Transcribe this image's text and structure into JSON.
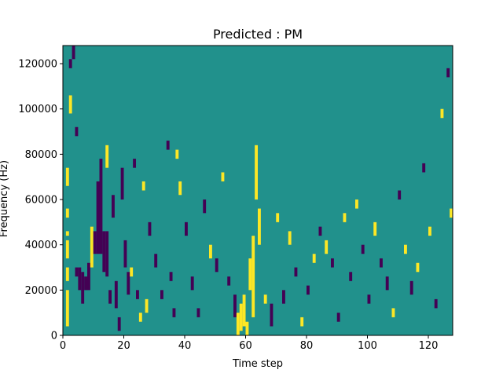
{
  "chart_data": {
    "type": "heatmap",
    "title": "Predicted : PM",
    "xlabel": "Time step",
    "ylabel": "Frequency (Hz)",
    "xlim": [
      0,
      128
    ],
    "ylim": [
      0,
      128000
    ],
    "x_ticks": [
      0,
      20,
      40,
      60,
      80,
      100,
      120
    ],
    "x_tick_labels": [
      "0",
      "20",
      "40",
      "60",
      "80",
      "100",
      "120"
    ],
    "y_ticks": [
      0,
      20000,
      40000,
      60000,
      80000,
      100000,
      120000
    ],
    "y_tick_labels": [
      "0",
      "20000",
      "40000",
      "60000",
      "80000",
      "100000",
      "120000"
    ],
    "value_levels": {
      "low": -1,
      "mid": 0,
      "high": 1
    },
    "colors": {
      "low": "#440154",
      "mid": "#21918c",
      "high": "#fde725"
    },
    "background_value": 0,
    "cells": [
      {
        "t": 1,
        "f": [
          4000,
          20000
        ],
        "v": 1
      },
      {
        "t": 1,
        "f": [
          24000,
          30000
        ],
        "v": 1
      },
      {
        "t": 1,
        "f": [
          34000,
          42000
        ],
        "v": 1
      },
      {
        "t": 1,
        "f": [
          44000,
          46000
        ],
        "v": 1
      },
      {
        "t": 1,
        "f": [
          52000,
          56000
        ],
        "v": 1
      },
      {
        "t": 1,
        "f": [
          66000,
          74000
        ],
        "v": 1
      },
      {
        "t": 2,
        "f": [
          98000,
          106000
        ],
        "v": 1
      },
      {
        "t": 2,
        "f": [
          118000,
          122000
        ],
        "v": -1
      },
      {
        "t": 3,
        "f": [
          122000,
          128000
        ],
        "v": -1
      },
      {
        "t": 4,
        "f": [
          26000,
          30000
        ],
        "v": -1
      },
      {
        "t": 4,
        "f": [
          88000,
          92000
        ],
        "v": -1
      },
      {
        "t": 5,
        "f": [
          20000,
          30000
        ],
        "v": -1
      },
      {
        "t": 6,
        "f": [
          14000,
          28000
        ],
        "v": -1
      },
      {
        "t": 7,
        "f": [
          20000,
          26000
        ],
        "v": -1
      },
      {
        "t": 8,
        "f": [
          20000,
          32000
        ],
        "v": -1
      },
      {
        "t": 9,
        "f": [
          30000,
          48000
        ],
        "v": 1
      },
      {
        "t": 10,
        "f": [
          36000,
          46000
        ],
        "v": -1
      },
      {
        "t": 11,
        "f": [
          36000,
          68000
        ],
        "v": -1
      },
      {
        "t": 12,
        "f": [
          36000,
          78000
        ],
        "v": -1
      },
      {
        "t": 13,
        "f": [
          28000,
          46000
        ],
        "v": -1
      },
      {
        "t": 14,
        "f": [
          26000,
          46000
        ],
        "v": -1
      },
      {
        "t": 14,
        "f": [
          74000,
          84000
        ],
        "v": 1
      },
      {
        "t": 15,
        "f": [
          14000,
          20000
        ],
        "v": -1
      },
      {
        "t": 16,
        "f": [
          52000,
          62000
        ],
        "v": -1
      },
      {
        "t": 17,
        "f": [
          12000,
          24000
        ],
        "v": -1
      },
      {
        "t": 18,
        "f": [
          2000,
          8000
        ],
        "v": -1
      },
      {
        "t": 19,
        "f": [
          60000,
          74000
        ],
        "v": -1
      },
      {
        "t": 20,
        "f": [
          30000,
          42000
        ],
        "v": -1
      },
      {
        "t": 21,
        "f": [
          18000,
          28000
        ],
        "v": -1
      },
      {
        "t": 22,
        "f": [
          26000,
          30000
        ],
        "v": 1
      },
      {
        "t": 23,
        "f": [
          74000,
          78000
        ],
        "v": -1
      },
      {
        "t": 24,
        "f": [
          16000,
          20000
        ],
        "v": -1
      },
      {
        "t": 25,
        "f": [
          6000,
          10000
        ],
        "v": 1
      },
      {
        "t": 26,
        "f": [
          64000,
          68000
        ],
        "v": 1
      },
      {
        "t": 27,
        "f": [
          10000,
          16000
        ],
        "v": 1
      },
      {
        "t": 28,
        "f": [
          44000,
          50000
        ],
        "v": -1
      },
      {
        "t": 30,
        "f": [
          30000,
          36000
        ],
        "v": -1
      },
      {
        "t": 32,
        "f": [
          16000,
          20000
        ],
        "v": -1
      },
      {
        "t": 34,
        "f": [
          82000,
          86000
        ],
        "v": -1
      },
      {
        "t": 35,
        "f": [
          24000,
          28000
        ],
        "v": -1
      },
      {
        "t": 36,
        "f": [
          8000,
          12000
        ],
        "v": -1
      },
      {
        "t": 37,
        "f": [
          78000,
          82000
        ],
        "v": 1
      },
      {
        "t": 38,
        "f": [
          62000,
          68000
        ],
        "v": 1
      },
      {
        "t": 40,
        "f": [
          44000,
          50000
        ],
        "v": -1
      },
      {
        "t": 42,
        "f": [
          20000,
          26000
        ],
        "v": -1
      },
      {
        "t": 44,
        "f": [
          8000,
          12000
        ],
        "v": -1
      },
      {
        "t": 46,
        "f": [
          54000,
          60000
        ],
        "v": -1
      },
      {
        "t": 48,
        "f": [
          34000,
          40000
        ],
        "v": 1
      },
      {
        "t": 50,
        "f": [
          28000,
          34000
        ],
        "v": -1
      },
      {
        "t": 52,
        "f": [
          68000,
          72000
        ],
        "v": 1
      },
      {
        "t": 54,
        "f": [
          22000,
          26000
        ],
        "v": -1
      },
      {
        "t": 56,
        "f": [
          8000,
          18000
        ],
        "v": -1
      },
      {
        "t": 57,
        "f": [
          0,
          10000
        ],
        "v": 1
      },
      {
        "t": 58,
        "f": [
          2000,
          14000
        ],
        "v": 1
      },
      {
        "t": 59,
        "f": [
          4000,
          18000
        ],
        "v": 1
      },
      {
        "t": 60,
        "f": [
          0,
          6000
        ],
        "v": 1
      },
      {
        "t": 61,
        "f": [
          20000,
          34000
        ],
        "v": 1
      },
      {
        "t": 62,
        "f": [
          8000,
          44000
        ],
        "v": 1
      },
      {
        "t": 63,
        "f": [
          60000,
          84000
        ],
        "v": 1
      },
      {
        "t": 64,
        "f": [
          40000,
          56000
        ],
        "v": 1
      },
      {
        "t": 66,
        "f": [
          14000,
          18000
        ],
        "v": 1
      },
      {
        "t": 68,
        "f": [
          4000,
          14000
        ],
        "v": -1
      },
      {
        "t": 70,
        "f": [
          50000,
          54000
        ],
        "v": 1
      },
      {
        "t": 72,
        "f": [
          14000,
          20000
        ],
        "v": -1
      },
      {
        "t": 74,
        "f": [
          40000,
          46000
        ],
        "v": 1
      },
      {
        "t": 76,
        "f": [
          26000,
          30000
        ],
        "v": -1
      },
      {
        "t": 78,
        "f": [
          4000,
          8000
        ],
        "v": 1
      },
      {
        "t": 80,
        "f": [
          18000,
          22000
        ],
        "v": -1
      },
      {
        "t": 82,
        "f": [
          32000,
          36000
        ],
        "v": 1
      },
      {
        "t": 84,
        "f": [
          44000,
          48000
        ],
        "v": -1
      },
      {
        "t": 86,
        "f": [
          36000,
          42000
        ],
        "v": 1
      },
      {
        "t": 88,
        "f": [
          30000,
          34000
        ],
        "v": -1
      },
      {
        "t": 90,
        "f": [
          6000,
          10000
        ],
        "v": -1
      },
      {
        "t": 92,
        "f": [
          50000,
          54000
        ],
        "v": 1
      },
      {
        "t": 94,
        "f": [
          24000,
          28000
        ],
        "v": -1
      },
      {
        "t": 96,
        "f": [
          56000,
          60000
        ],
        "v": 1
      },
      {
        "t": 98,
        "f": [
          36000,
          40000
        ],
        "v": -1
      },
      {
        "t": 100,
        "f": [
          14000,
          18000
        ],
        "v": -1
      },
      {
        "t": 102,
        "f": [
          44000,
          50000
        ],
        "v": 1
      },
      {
        "t": 104,
        "f": [
          30000,
          34000
        ],
        "v": -1
      },
      {
        "t": 106,
        "f": [
          20000,
          26000
        ],
        "v": -1
      },
      {
        "t": 108,
        "f": [
          8000,
          12000
        ],
        "v": 1
      },
      {
        "t": 110,
        "f": [
          60000,
          64000
        ],
        "v": -1
      },
      {
        "t": 112,
        "f": [
          36000,
          40000
        ],
        "v": 1
      },
      {
        "t": 114,
        "f": [
          18000,
          24000
        ],
        "v": -1
      },
      {
        "t": 116,
        "f": [
          28000,
          32000
        ],
        "v": 1
      },
      {
        "t": 118,
        "f": [
          72000,
          76000
        ],
        "v": -1
      },
      {
        "t": 120,
        "f": [
          44000,
          48000
        ],
        "v": 1
      },
      {
        "t": 122,
        "f": [
          12000,
          16000
        ],
        "v": -1
      },
      {
        "t": 124,
        "f": [
          96000,
          100000
        ],
        "v": 1
      },
      {
        "t": 126,
        "f": [
          114000,
          118000
        ],
        "v": -1
      },
      {
        "t": 127,
        "f": [
          52000,
          56000
        ],
        "v": 1
      }
    ]
  }
}
